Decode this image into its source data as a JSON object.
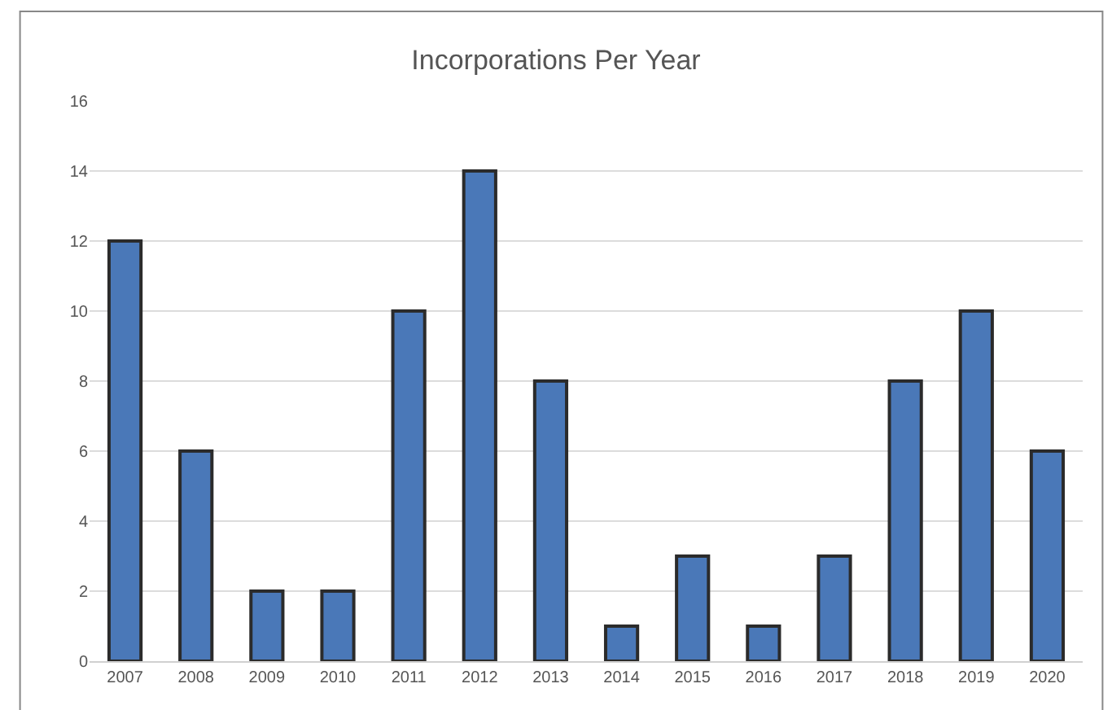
{
  "chart_data": {
    "type": "bar",
    "title": "Incorporations Per Year",
    "categories": [
      "2007",
      "2008",
      "2009",
      "2010",
      "2011",
      "2012",
      "2013",
      "2014",
      "2015",
      "2016",
      "2017",
      "2018",
      "2019",
      "2020"
    ],
    "values": [
      12,
      6,
      2,
      2,
      10,
      14,
      8,
      1,
      3,
      1,
      3,
      8,
      10,
      6
    ],
    "color": "#4a78b8",
    "ylim": [
      0,
      16
    ],
    "yticks": [
      0,
      2,
      4,
      6,
      8,
      10,
      12,
      14,
      16
    ],
    "grid": "y"
  }
}
